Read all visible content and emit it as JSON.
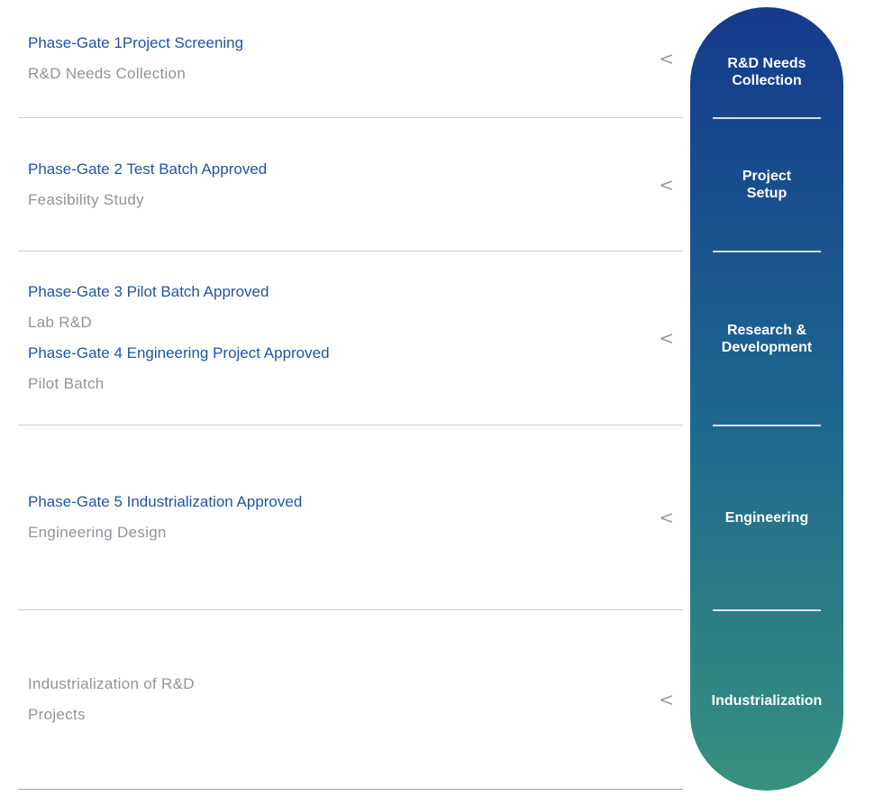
{
  "colors": {
    "title_blue": "#2155a0",
    "subtitle_gray": "#909499",
    "row_divider_gray": "#cdcdcd",
    "pill_gradient_top": "#153a8b",
    "pill_gradient_mid": "#1d6590",
    "pill_gradient_bottom": "#37917d",
    "pill_text": "#ffffff"
  },
  "chevron_char": "<",
  "rows": [
    {
      "title": "Phase-Gate 1Project Screening",
      "subtitle": "R&D Needs Collection"
    },
    {
      "title": "Phase-Gate 2 Test Batch Approved",
      "subtitle": "Feasibility Study"
    },
    {
      "title1": "Phase-Gate 3 Pilot Batch Approved",
      "subtitle1": "Lab R&D",
      "title2": "Phase-Gate 4 Engineering Project Approved",
      "subtitle2": "Pilot Batch"
    },
    {
      "title": "Phase-Gate 5 Industrialization Approved",
      "subtitle": "Engineering Design"
    },
    {
      "subtitle_line1": "Industrialization of R&D",
      "subtitle_line2": "Projects"
    }
  ],
  "stages": [
    {
      "lines": [
        "R&D Needs",
        "Collection"
      ]
    },
    {
      "lines": [
        "Project",
        "Setup"
      ]
    },
    {
      "lines": [
        "Research &",
        "Development"
      ]
    },
    {
      "lines": [
        "Engineering"
      ]
    },
    {
      "lines": [
        "Industrialization"
      ]
    }
  ]
}
